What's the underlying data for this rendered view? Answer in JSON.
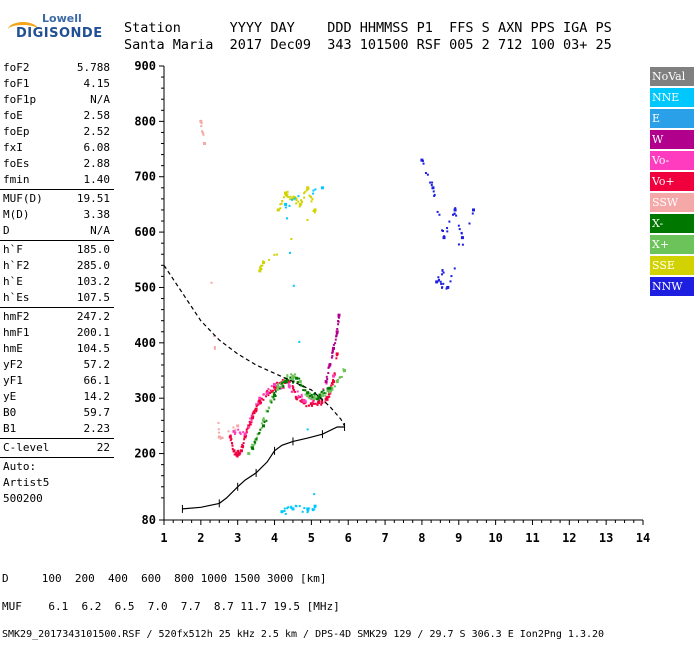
{
  "logo": {
    "line1": "Lowell",
    "line2": "DIGISONDE"
  },
  "header": {
    "labels": [
      "Station",
      "YYYY",
      "DAY",
      "DDD",
      "HHMMSS",
      "P1",
      "FFS",
      "S",
      "AXN",
      "PPS",
      "IGA",
      "PS"
    ],
    "values": [
      "Santa Maria",
      "2017",
      "Dec09",
      "343",
      "101500",
      "RSF",
      "005",
      "2",
      "712",
      "100",
      "03+",
      "25"
    ]
  },
  "params": {
    "group1": [
      {
        "k": "foF2",
        "v": "5.788"
      },
      {
        "k": "foF1",
        "v": "4.15"
      },
      {
        "k": "foF1p",
        "v": "N/A"
      },
      {
        "k": "foE",
        "v": "2.58"
      },
      {
        "k": "foEp",
        "v": "2.52"
      },
      {
        "k": "fxI",
        "v": "6.08"
      },
      {
        "k": "foEs",
        "v": "2.88"
      },
      {
        "k": "fmin",
        "v": "1.40"
      }
    ],
    "group2": [
      {
        "k": "MUF(D)",
        "v": "19.51"
      },
      {
        "k": "M(D)",
        "v": "3.38"
      },
      {
        "k": "D",
        "v": "N/A"
      }
    ],
    "group3": [
      {
        "k": "h`F",
        "v": "185.0"
      },
      {
        "k": "h`F2",
        "v": "285.0"
      },
      {
        "k": "h`E",
        "v": "103.2"
      },
      {
        "k": "h`Es",
        "v": "107.5"
      }
    ],
    "group4": [
      {
        "k": "hmF2",
        "v": "247.2"
      },
      {
        "k": "hmF1",
        "v": "200.1"
      },
      {
        "k": "hmE",
        "v": "104.5"
      },
      {
        "k": "yF2",
        "v": "57.2"
      },
      {
        "k": "yF1",
        "v": "66.1"
      },
      {
        "k": "yE",
        "v": "14.2"
      },
      {
        "k": "B0",
        "v": "59.7"
      },
      {
        "k": "B1",
        "v": "2.23"
      }
    ],
    "group5": [
      {
        "k": "C-level",
        "v": "22"
      }
    ],
    "auto": [
      "Auto:",
      "Artist5",
      "500200"
    ]
  },
  "legend": [
    {
      "label": "NoVal",
      "color": "#808080"
    },
    {
      "label": "NNE",
      "color": "#00c8ff"
    },
    {
      "label": "E",
      "color": "#2aa0e8"
    },
    {
      "label": "W",
      "color": "#b0008c"
    },
    {
      "label": "Vo-",
      "color": "#ff3cc0"
    },
    {
      "label": "Vo+",
      "color": "#f0003c"
    },
    {
      "label": "SSW",
      "color": "#f5a8a8"
    },
    {
      "label": "X-",
      "color": "#007800"
    },
    {
      "label": "X+",
      "color": "#6cc35a"
    },
    {
      "label": "SSE",
      "color": "#d2d200"
    },
    {
      "label": "NNW",
      "color": "#1e1ee0"
    }
  ],
  "footer": {
    "d_row": "D     100  200  400  600  800 1000 1500 3000 [km]",
    "muf_row": "MUF    6.1  6.2  6.5  7.0  7.7  8.7 11.7 19.5 [MHz]",
    "info": "SMK29_2017343101500.RSF / 520fx512h 25 kHz 2.5 km / DPS-4D SMK29 129 / 29.7 S 306.3 E Ion2Png 1.3.20"
  },
  "chart_data": {
    "type": "scatter",
    "title": "",
    "xlabel": "",
    "ylabel": "",
    "xlim": [
      1,
      14
    ],
    "ylim": [
      80,
      900
    ],
    "xticks": [
      1,
      2,
      3,
      4,
      5,
      6,
      7,
      8,
      9,
      10,
      11,
      12,
      13,
      14
    ],
    "yticks": [
      80,
      200,
      300,
      400,
      500,
      600,
      700,
      800,
      900
    ],
    "grid": false,
    "legend_position": "right",
    "series": [
      {
        "name": "Vo+",
        "color": "#f0003c",
        "x": [
          2.8,
          2.9,
          3.0,
          3.1,
          3.2,
          3.3,
          3.4,
          3.5,
          3.6,
          3.8,
          4.0,
          4.2,
          4.4,
          4.6,
          4.8,
          5.0,
          5.2,
          5.4,
          5.5,
          5.6,
          5.7
        ],
        "y": [
          230,
          205,
          198,
          205,
          230,
          250,
          265,
          280,
          295,
          310,
          320,
          328,
          330,
          300,
          292,
          290,
          292,
          298,
          310,
          330,
          380
        ]
      },
      {
        "name": "Vo-",
        "color": "#ff3cc0",
        "x": [
          2.9,
          3.2,
          3.6,
          4.0,
          4.4,
          4.8,
          5.2,
          5.6
        ],
        "y": [
          240,
          235,
          300,
          325,
          322,
          296,
          300,
          340
        ]
      },
      {
        "name": "X+",
        "color": "#6cc35a",
        "x": [
          3.3,
          3.5,
          3.7,
          3.9,
          4.1,
          4.3,
          4.5,
          4.7,
          4.9,
          5.1,
          5.3,
          5.5,
          5.7,
          5.9
        ],
        "y": [
          200,
          225,
          260,
          295,
          320,
          335,
          340,
          330,
          305,
          300,
          305,
          315,
          330,
          350
        ]
      },
      {
        "name": "X-",
        "color": "#007800",
        "x": [
          3.4,
          3.7,
          4.0,
          4.3,
          4.6,
          4.9,
          5.2,
          5.5
        ],
        "y": [
          210,
          250,
          305,
          330,
          336,
          310,
          302,
          318
        ]
      },
      {
        "name": "W",
        "color": "#b0008c",
        "x": [
          5.4,
          5.5,
          5.6,
          5.7,
          5.75
        ],
        "y": [
          330,
          360,
          390,
          420,
          450
        ]
      },
      {
        "name": "SSE",
        "color": "#d2d200",
        "x": [
          4.1,
          4.3,
          4.5,
          4.7,
          4.9,
          5.1,
          3.6,
          3.7
        ],
        "y": [
          640,
          670,
          660,
          650,
          680,
          640,
          530,
          545
        ]
      },
      {
        "name": "NNE",
        "color": "#00c8ff",
        "x": [
          4.2,
          4.5,
          4.9,
          5.1,
          4.3,
          5.3
        ],
        "y": [
          95,
          100,
          100,
          105,
          650,
          680
        ]
      },
      {
        "name": "NNW",
        "color": "#1e1ee0",
        "x": [
          8.0,
          8.3,
          8.6,
          8.9,
          9.1,
          8.4,
          8.7,
          9.4
        ],
        "y": [
          730,
          680,
          590,
          640,
          590,
          510,
          500,
          640
        ]
      },
      {
        "name": "SSW",
        "color": "#f5a8a8",
        "x": [
          2.0,
          2.1,
          2.5,
          3.0
        ],
        "y": [
          800,
          760,
          230,
          250
        ]
      }
    ],
    "lines": {
      "profile_solid": {
        "x": [
          1.5,
          2.0,
          2.5,
          2.7,
          3.0,
          3.2,
          3.5,
          3.8,
          4.0,
          4.2,
          4.5,
          4.9,
          5.3,
          5.7,
          5.9
        ],
        "y": [
          100,
          103,
          110,
          120,
          140,
          152,
          165,
          185,
          205,
          215,
          222,
          228,
          235,
          248,
          248
        ]
      },
      "muf_dashed": {
        "x": [
          1.0,
          1.5,
          2.0,
          2.5,
          3.0,
          3.5,
          4.0,
          4.5,
          5.0,
          5.5,
          5.8,
          5.9
        ],
        "y": [
          540,
          490,
          440,
          405,
          380,
          360,
          345,
          330,
          315,
          285,
          262,
          250
        ]
      }
    }
  }
}
